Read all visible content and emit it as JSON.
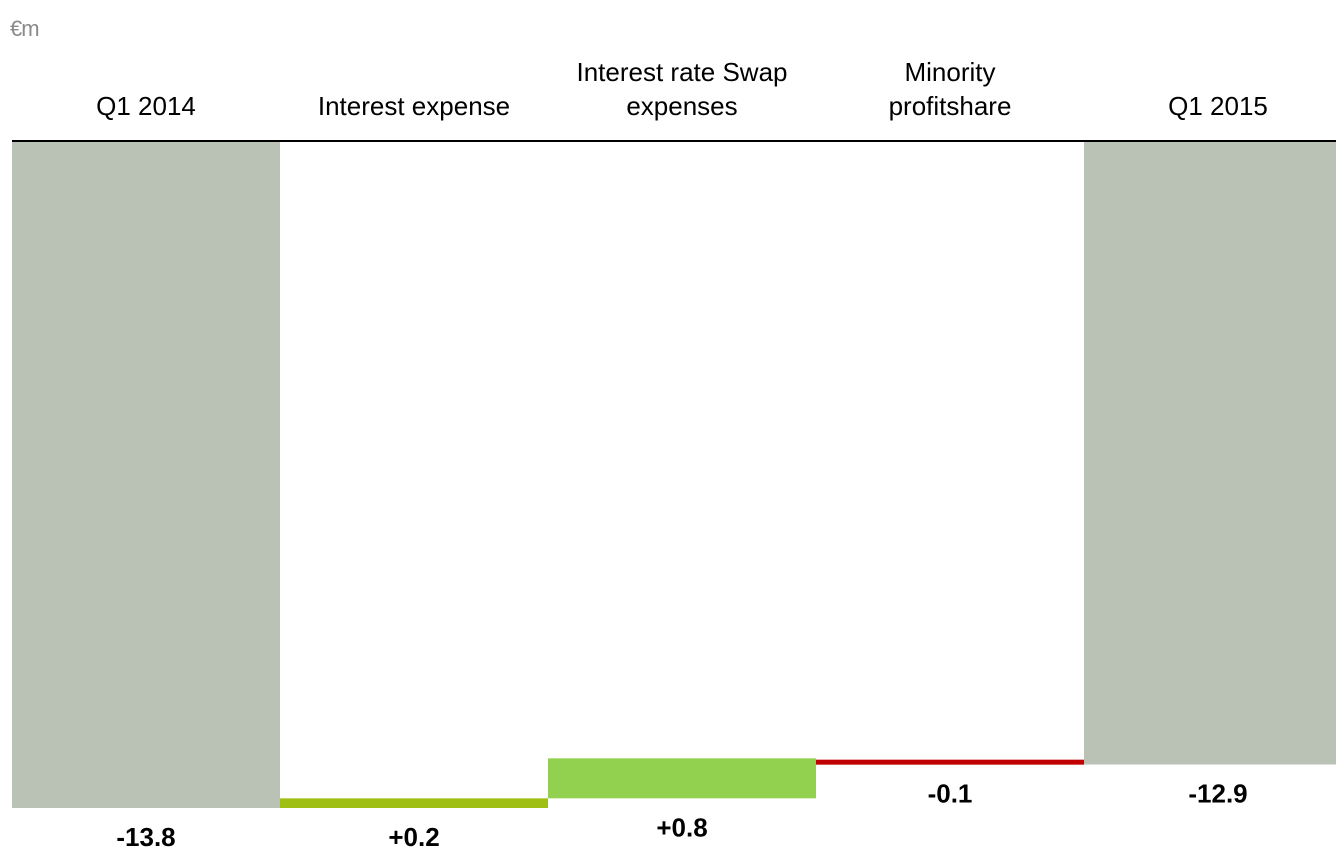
{
  "unit_label": "€m",
  "chart_data": {
    "type": "bar",
    "subtype": "waterfall",
    "categories": [
      [
        "Q1 2014"
      ],
      [
        "Interest expense"
      ],
      [
        "Interest rate Swap",
        "expenses"
      ],
      [
        "Minority",
        "profitshare"
      ],
      [
        "Q1 2015"
      ]
    ],
    "values": [
      -13.8,
      0.2,
      0.8,
      -0.1,
      -12.9
    ],
    "value_labels": [
      "-13.8",
      "+0.2",
      "+0.8",
      "-0.1",
      "-12.9"
    ],
    "bar_kinds": [
      "total",
      "delta",
      "delta",
      "delta",
      "total"
    ],
    "title": "",
    "xlabel": "",
    "ylabel": "",
    "ylim": [
      -13.8,
      0
    ],
    "grid": false,
    "legend": "none",
    "colors": {
      "total": "#b9c2b5",
      "delta_interest": "#a0bf15",
      "delta_swap": "#92d050",
      "negative": "#c00000",
      "axis": "#000000"
    }
  }
}
